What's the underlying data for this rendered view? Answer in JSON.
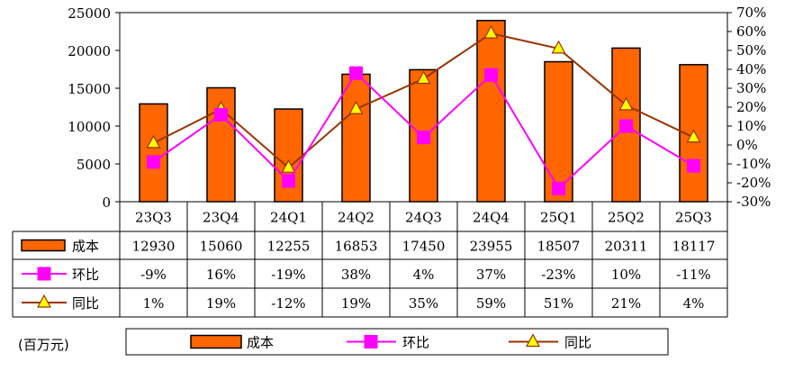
{
  "chart_data": {
    "type": "bar",
    "categories": [
      "23Q3",
      "23Q4",
      "24Q1",
      "24Q2",
      "24Q3",
      "24Q4",
      "25Q1",
      "25Q2",
      "25Q3"
    ],
    "series": [
      {
        "name": "成本",
        "kind": "bar",
        "axis": "left",
        "color": "#FF6600",
        "values": [
          12930,
          15060,
          12255,
          16853,
          17450,
          23955,
          18507,
          20311,
          18117
        ],
        "labels": [
          "12930",
          "15060",
          "12255",
          "16853",
          "17450",
          "23955",
          "18507",
          "20311",
          "18117"
        ]
      },
      {
        "name": "环比",
        "kind": "line",
        "axis": "right",
        "color": "#FF00FF",
        "marker": "square",
        "values": [
          -9,
          16,
          -19,
          38,
          4,
          37,
          -23,
          10,
          -11
        ],
        "labels": [
          "-9%",
          "16%",
          "-19%",
          "38%",
          "4%",
          "37%",
          "-23%",
          "10%",
          "-11%"
        ]
      },
      {
        "name": "同比",
        "kind": "line",
        "axis": "right",
        "color": "#993300",
        "marker": "triangle",
        "marker_fill": "#FFFF00",
        "values": [
          1,
          19,
          -12,
          19,
          35,
          59,
          51,
          21,
          4
        ],
        "labels": [
          "1%",
          "19%",
          "-12%",
          "19%",
          "35%",
          "59%",
          "51%",
          "21%",
          "4%"
        ]
      }
    ],
    "y_left": {
      "ylim": [
        0,
        25000
      ],
      "ticks": [
        "0",
        "5000",
        "10000",
        "15000",
        "20000",
        "25000"
      ]
    },
    "y_right": {
      "ylim": [
        -30,
        70
      ],
      "ticks": [
        "-30%",
        "-20%",
        "-10%",
        "0%",
        "10%",
        "20%",
        "30%",
        "40%",
        "50%",
        "60%",
        "70%"
      ]
    },
    "unit_label": "(百万元)",
    "grid": false,
    "legend_position": "bottom"
  }
}
